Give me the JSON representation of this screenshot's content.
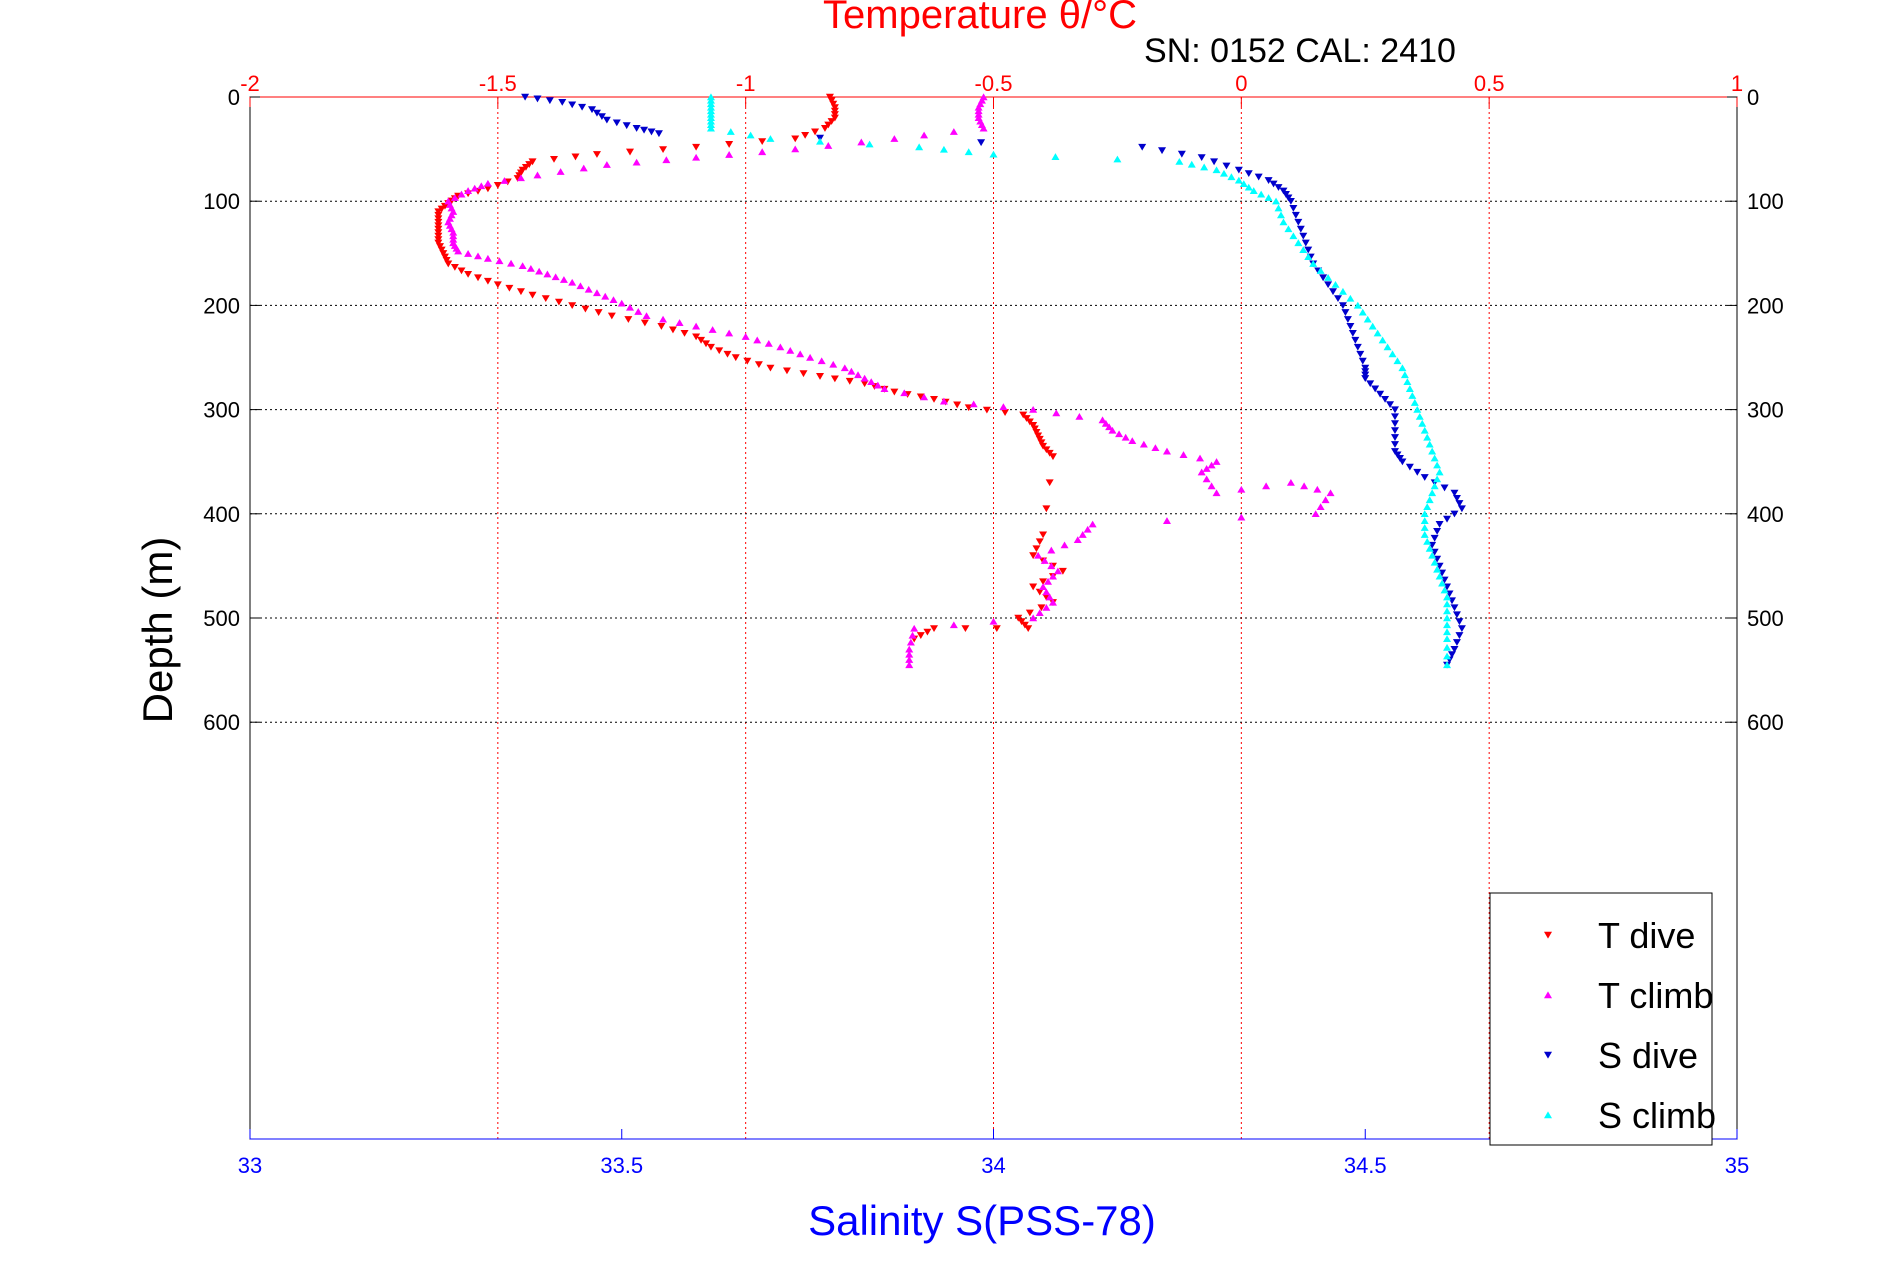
{
  "chart_data": {
    "type": "scatter",
    "title": "Temperature θ/°C",
    "subtitle": "SN: 0152  CAL: 2410",
    "xlabel": "Salinity S(PSS-78)",
    "ylabel": "Depth (m)",
    "x_bottom": {
      "label": "Salinity S(PSS-78)",
      "range": [
        33,
        35
      ],
      "ticks": [
        33,
        33.5,
        34,
        34.5,
        35
      ],
      "tick_labels": [
        "33",
        "33.5",
        "34",
        "34.5",
        "35"
      ]
    },
    "x_top": {
      "label": "Temperature θ/°C",
      "range": [
        -2,
        1
      ],
      "ticks": [
        -2,
        -1.5,
        -1,
        -0.5,
        0,
        0.5,
        1
      ],
      "tick_labels": [
        "-2",
        "-1.5",
        "-1",
        "-0.5",
        "0",
        "0.5",
        "1"
      ]
    },
    "y": {
      "range": [
        0,
        1000
      ],
      "reversed": true,
      "ticks": [
        0,
        100,
        200,
        300,
        400,
        500,
        600
      ],
      "tick_labels": [
        "0",
        "100",
        "200",
        "300",
        "400",
        "500",
        "600"
      ]
    },
    "grid": true,
    "legend_position": "bottom-right",
    "series": [
      {
        "name": "T dive",
        "axis": "top",
        "color": "#ff0000",
        "marker": "triangle-down",
        "points": [
          [
            -0.83,
            0
          ],
          [
            -0.82,
            10
          ],
          [
            -0.82,
            20
          ],
          [
            -0.84,
            30
          ],
          [
            -0.9,
            40
          ],
          [
            -1.1,
            48
          ],
          [
            -1.3,
            55
          ],
          [
            -1.43,
            62
          ],
          [
            -1.45,
            70
          ],
          [
            -1.46,
            78
          ],
          [
            -1.52,
            88
          ],
          [
            -1.58,
            95
          ],
          [
            -1.6,
            102
          ],
          [
            -1.62,
            110
          ],
          [
            -1.62,
            120
          ],
          [
            -1.62,
            130
          ],
          [
            -1.62,
            140
          ],
          [
            -1.61,
            150
          ],
          [
            -1.6,
            160
          ],
          [
            -1.56,
            170
          ],
          [
            -1.5,
            180
          ],
          [
            -1.43,
            190
          ],
          [
            -1.35,
            200
          ],
          [
            -1.27,
            210
          ],
          [
            -1.17,
            220
          ],
          [
            -1.1,
            230
          ],
          [
            -1.07,
            240
          ],
          [
            -1.02,
            250
          ],
          [
            -0.95,
            260
          ],
          [
            -0.85,
            268
          ],
          [
            -0.76,
            275
          ],
          [
            -0.7,
            283
          ],
          [
            -0.62,
            290
          ],
          [
            -0.55,
            298
          ],
          [
            -0.44,
            305
          ],
          [
            -0.42,
            315
          ],
          [
            -0.41,
            325
          ],
          [
            -0.4,
            335
          ],
          [
            -0.38,
            345
          ],
          [
            -0.4,
            420
          ],
          [
            -0.42,
            440
          ],
          [
            -0.36,
            455
          ],
          [
            -0.42,
            470
          ],
          [
            -0.38,
            485
          ],
          [
            -0.45,
            500
          ],
          [
            -0.43,
            510
          ],
          [
            -0.62,
            510
          ],
          [
            -0.66,
            520
          ]
        ]
      },
      {
        "name": "T climb",
        "axis": "top",
        "color": "#ff00ff",
        "marker": "triangle-up",
        "points": [
          [
            -0.52,
            0
          ],
          [
            -0.53,
            10
          ],
          [
            -0.53,
            20
          ],
          [
            -0.52,
            30
          ],
          [
            -0.7,
            40
          ],
          [
            -0.9,
            50
          ],
          [
            -1.1,
            58
          ],
          [
            -1.28,
            65
          ],
          [
            -1.42,
            75
          ],
          [
            -1.52,
            83
          ],
          [
            -1.56,
            90
          ],
          [
            -1.6,
            100
          ],
          [
            -1.59,
            110
          ],
          [
            -1.6,
            120
          ],
          [
            -1.59,
            130
          ],
          [
            -1.59,
            140
          ],
          [
            -1.58,
            148
          ],
          [
            -1.52,
            155
          ],
          [
            -1.45,
            162
          ],
          [
            -1.4,
            170
          ],
          [
            -1.35,
            178
          ],
          [
            -1.3,
            188
          ],
          [
            -1.25,
            198
          ],
          [
            -1.2,
            210
          ],
          [
            -1.1,
            220
          ],
          [
            -1.0,
            230
          ],
          [
            -0.93,
            240
          ],
          [
            -0.87,
            250
          ],
          [
            -0.8,
            260
          ],
          [
            -0.76,
            270
          ],
          [
            -0.72,
            280
          ],
          [
            -0.6,
            292
          ],
          [
            -0.42,
            300
          ],
          [
            -0.28,
            310
          ],
          [
            -0.26,
            320
          ],
          [
            -0.22,
            330
          ],
          [
            -0.15,
            340
          ],
          [
            -0.05,
            350
          ],
          [
            -0.08,
            360
          ],
          [
            -0.05,
            380
          ],
          [
            0.1,
            370
          ],
          [
            0.18,
            380
          ],
          [
            0.15,
            400
          ],
          [
            -0.3,
            410
          ],
          [
            -0.33,
            425
          ],
          [
            -0.41,
            440
          ],
          [
            -0.37,
            455
          ],
          [
            -0.4,
            470
          ],
          [
            -0.38,
            485
          ],
          [
            -0.42,
            500
          ],
          [
            -0.66,
            510
          ],
          [
            -0.67,
            530
          ],
          [
            -0.67,
            545
          ]
        ]
      },
      {
        "name": "S dive",
        "axis": "bottom",
        "color": "#0000cc",
        "marker": "triangle-down",
        "points": [
          [
            33.37,
            0
          ],
          [
            33.42,
            5
          ],
          [
            33.46,
            12
          ],
          [
            33.48,
            22
          ],
          [
            33.52,
            30
          ],
          [
            33.55,
            35
          ],
          [
            34.2,
            48
          ],
          [
            34.28,
            58
          ],
          [
            34.33,
            70
          ],
          [
            34.37,
            80
          ],
          [
            34.39,
            90
          ],
          [
            34.4,
            100
          ],
          [
            34.41,
            120
          ],
          [
            34.42,
            140
          ],
          [
            34.43,
            160
          ],
          [
            34.45,
            180
          ],
          [
            34.47,
            200
          ],
          [
            34.48,
            220
          ],
          [
            34.49,
            240
          ],
          [
            34.5,
            260
          ],
          [
            34.5,
            270
          ],
          [
            34.52,
            285
          ],
          [
            34.54,
            300
          ],
          [
            34.54,
            320
          ],
          [
            34.54,
            340
          ],
          [
            34.55,
            350
          ],
          [
            34.58,
            365
          ],
          [
            34.62,
            380
          ],
          [
            34.63,
            395
          ],
          [
            34.6,
            410
          ],
          [
            34.59,
            430
          ],
          [
            34.6,
            450
          ],
          [
            34.61,
            470
          ],
          [
            34.62,
            490
          ],
          [
            34.63,
            510
          ],
          [
            34.62,
            530
          ],
          [
            34.61,
            545
          ]
        ]
      },
      {
        "name": "S climb",
        "axis": "bottom",
        "color": "#00ffff",
        "marker": "triangle-up",
        "points": [
          [
            33.62,
            0
          ],
          [
            33.62,
            10
          ],
          [
            33.62,
            20
          ],
          [
            33.62,
            30
          ],
          [
            33.7,
            40
          ],
          [
            33.9,
            48
          ],
          [
            34.0,
            55
          ],
          [
            34.25,
            62
          ],
          [
            34.3,
            70
          ],
          [
            34.33,
            80
          ],
          [
            34.35,
            90
          ],
          [
            34.38,
            100
          ],
          [
            34.39,
            120
          ],
          [
            34.41,
            140
          ],
          [
            34.43,
            160
          ],
          [
            34.46,
            180
          ],
          [
            34.49,
            200
          ],
          [
            34.51,
            220
          ],
          [
            34.53,
            240
          ],
          [
            34.55,
            260
          ],
          [
            34.56,
            280
          ],
          [
            34.57,
            300
          ],
          [
            34.58,
            320
          ],
          [
            34.59,
            340
          ],
          [
            34.6,
            360
          ],
          [
            34.59,
            380
          ],
          [
            34.58,
            400
          ],
          [
            34.58,
            420
          ],
          [
            34.59,
            440
          ],
          [
            34.6,
            460
          ],
          [
            34.61,
            480
          ],
          [
            34.61,
            500
          ],
          [
            34.61,
            520
          ],
          [
            34.61,
            545
          ]
        ]
      }
    ]
  }
}
